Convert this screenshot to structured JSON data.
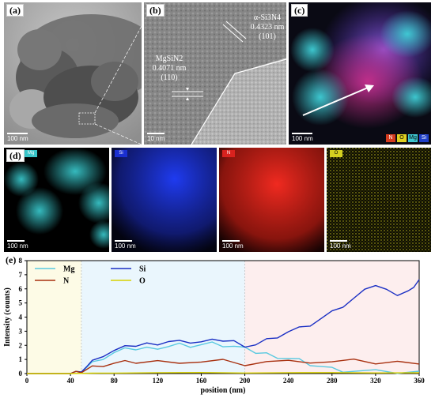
{
  "panels": {
    "a": {
      "label": "(a)",
      "scale": "100 nm"
    },
    "b": {
      "label": "(b)",
      "scale": "10 nm",
      "alpha_name": "α-Si3N4",
      "alpha_d": "0.4323 nm",
      "alpha_hkl": "(101)",
      "mg_name": "MgSiN2",
      "mg_d": "0.4071 nm",
      "mg_hkl": "(110)"
    },
    "c": {
      "label": "(c)",
      "scale": "100 nm",
      "legend": [
        {
          "text": "N",
          "color": "#d43b1e"
        },
        {
          "text": "O",
          "color": "#e0d020"
        },
        {
          "text": "Mg",
          "color": "#3fc7d0"
        },
        {
          "text": "Si",
          "color": "#2040c8"
        }
      ]
    },
    "d": {
      "label": "(d)",
      "maps": [
        {
          "tag": "Mg",
          "scale": "100 nm",
          "color": "#38c4c8"
        },
        {
          "tag": "Si",
          "scale": "100 nm",
          "color": "#1a2fd0"
        },
        {
          "tag": "N",
          "scale": "100 nm",
          "color": "#d8221e"
        },
        {
          "tag": "O",
          "scale": "100 nm",
          "color": "#d4cf20"
        }
      ]
    },
    "e": {
      "label": "(e)"
    }
  },
  "chart_data": {
    "type": "line",
    "xlabel": "position (nm)",
    "ylabel": "Intensity (counts)",
    "xlim": [
      0,
      360
    ],
    "ylim": [
      0,
      8
    ],
    "xticks": [
      0,
      40,
      80,
      120,
      160,
      200,
      240,
      280,
      320,
      360
    ],
    "yticks": [
      0,
      1,
      2,
      3,
      4,
      5,
      6,
      7,
      8
    ],
    "regions": [
      {
        "from": 0,
        "to": 50,
        "color": "#fdfbe6"
      },
      {
        "from": 50,
        "to": 200,
        "color": "#eaf6fd"
      },
      {
        "from": 200,
        "to": 360,
        "color": "#fdeeee"
      }
    ],
    "legend": [
      "Mg",
      "Si",
      "N",
      "O"
    ],
    "series": [
      {
        "name": "Mg",
        "color": "#59c9e0",
        "x": [
          0,
          40,
          45,
          50,
          55,
          60,
          70,
          80,
          90,
          100,
          110,
          120,
          130,
          140,
          150,
          160,
          170,
          180,
          190,
          200,
          210,
          220,
          230,
          240,
          250,
          260,
          270,
          280,
          290,
          300,
          320,
          340,
          360
        ],
        "y": [
          0,
          0,
          0.05,
          0.2,
          0.45,
          0.7,
          1.1,
          1.45,
          1.65,
          1.75,
          1.8,
          1.9,
          1.95,
          2.05,
          2.0,
          2.05,
          2.1,
          2.0,
          1.9,
          1.7,
          1.5,
          1.4,
          1.25,
          1.1,
          0.95,
          0.7,
          0.5,
          0.3,
          0.2,
          0.12,
          0.1,
          0.08,
          0.1
        ]
      },
      {
        "name": "Si",
        "color": "#1a2fc4",
        "x": [
          0,
          40,
          45,
          50,
          55,
          60,
          70,
          80,
          90,
          100,
          110,
          120,
          130,
          140,
          150,
          160,
          170,
          180,
          190,
          200,
          210,
          220,
          230,
          240,
          250,
          260,
          270,
          280,
          290,
          300,
          310,
          320,
          330,
          340,
          350,
          355,
          360
        ],
        "y": [
          0,
          0,
          0.05,
          0.25,
          0.5,
          0.8,
          1.3,
          1.6,
          1.8,
          2.0,
          2.1,
          2.2,
          2.3,
          2.25,
          2.3,
          2.25,
          2.3,
          2.4,
          2.3,
          1.7,
          2.1,
          2.4,
          2.7,
          3.0,
          3.2,
          3.5,
          3.9,
          4.3,
          4.8,
          5.3,
          5.8,
          6.3,
          5.9,
          5.7,
          5.9,
          6.0,
          6.8
        ]
      },
      {
        "name": "N",
        "color": "#a8300f",
        "x": [
          0,
          40,
          45,
          50,
          55,
          60,
          70,
          80,
          90,
          100,
          120,
          140,
          160,
          180,
          200,
          220,
          240,
          260,
          280,
          300,
          320,
          340,
          360
        ],
        "y": [
          0,
          0,
          0.05,
          0.2,
          0.3,
          0.4,
          0.6,
          0.7,
          0.75,
          0.8,
          0.85,
          0.9,
          0.85,
          0.9,
          0.7,
          0.85,
          0.8,
          0.85,
          0.8,
          0.85,
          0.75,
          0.8,
          0.85
        ]
      },
      {
        "name": "O",
        "color": "#d8d000",
        "x": [
          0,
          40,
          60,
          80,
          120,
          160,
          200,
          240,
          280,
          320,
          360
        ],
        "y": [
          0,
          0,
          0.02,
          0.05,
          0.06,
          0.06,
          0.05,
          0.06,
          0.05,
          0.05,
          0.05
        ]
      }
    ]
  }
}
